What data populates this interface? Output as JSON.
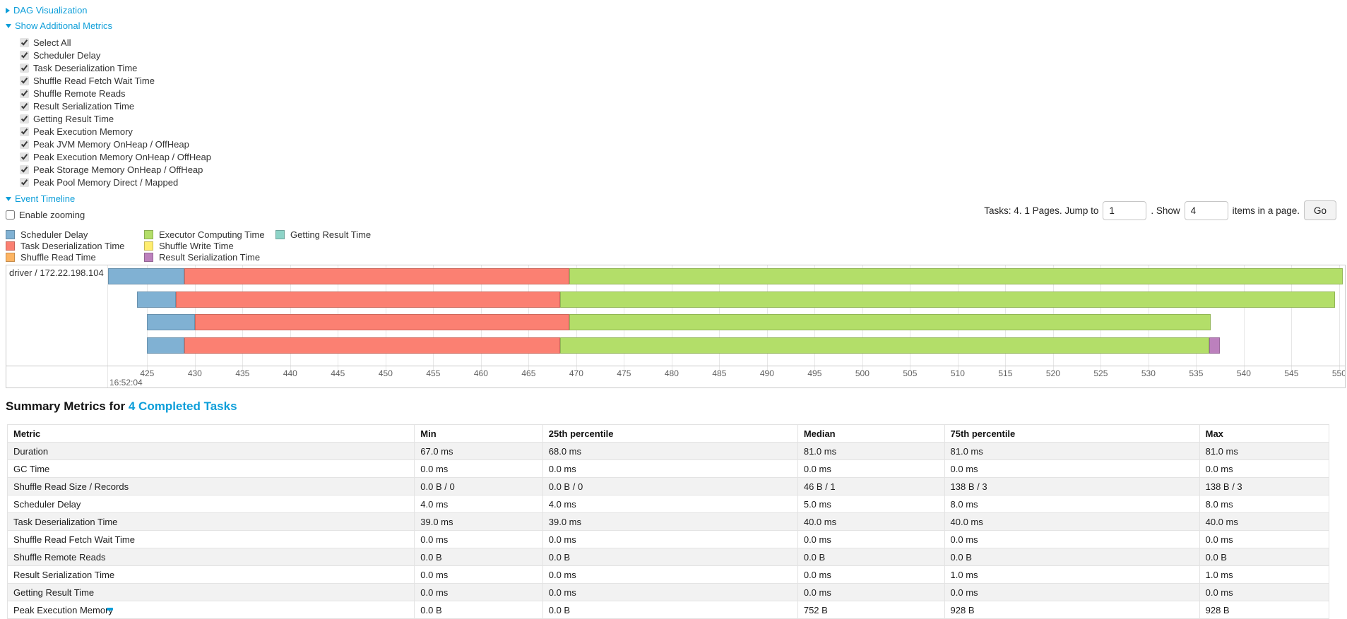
{
  "accent": {
    "link_color": "#0d9ed9"
  },
  "sections": {
    "dag": {
      "label": "DAG Visualization",
      "state": "collapsed"
    },
    "additional_metrics": {
      "label": "Show Additional Metrics",
      "state": "expanded"
    },
    "event_timeline": {
      "label": "Event Timeline",
      "state": "expanded"
    }
  },
  "metric_checkboxes": [
    {
      "label": "Select All",
      "checked": true
    },
    {
      "label": "Scheduler Delay",
      "checked": true
    },
    {
      "label": "Task Deserialization Time",
      "checked": true
    },
    {
      "label": "Shuffle Read Fetch Wait Time",
      "checked": true
    },
    {
      "label": "Shuffle Remote Reads",
      "checked": true
    },
    {
      "label": "Result Serialization Time",
      "checked": true
    },
    {
      "label": "Getting Result Time",
      "checked": true
    },
    {
      "label": "Peak Execution Memory",
      "checked": true
    },
    {
      "label": "Peak JVM Memory OnHeap / OffHeap",
      "checked": true
    },
    {
      "label": "Peak Execution Memory OnHeap / OffHeap",
      "checked": true
    },
    {
      "label": "Peak Storage Memory OnHeap / OffHeap",
      "checked": true
    },
    {
      "label": "Peak Pool Memory Direct / Mapped",
      "checked": true
    }
  ],
  "enable_zooming": {
    "label": "Enable zooming",
    "checked": false
  },
  "legend": {
    "items": [
      {
        "label": "Scheduler Delay",
        "color": "#80B1D3"
      },
      {
        "label": "Task Deserialization Time",
        "color": "#FB8072"
      },
      {
        "label": "Shuffle Read Time",
        "color": "#FDB462"
      },
      {
        "label": "Executor Computing Time",
        "color": "#B3DE69"
      },
      {
        "label": "Shuffle Write Time",
        "color": "#FFED6F"
      },
      {
        "label": "Result Serialization Time",
        "color": "#BC80BD"
      },
      {
        "label": "Getting Result Time",
        "color": "#8DD3C7"
      }
    ]
  },
  "pagination": {
    "summary": "Tasks: 4. 1 Pages. Jump to",
    "jump_value": "1",
    "show_label": ". Show",
    "show_value": "4",
    "suffix": "items in a page.",
    "go": "Go"
  },
  "chart_data": {
    "type": "timeline",
    "group_label": "driver / 172.22.198.104",
    "axis": {
      "min": 420.9,
      "max": 550.6,
      "tick_start": 425,
      "tick_end": 550,
      "tick_step": 5,
      "first_tick_sublabel": "16:52:04",
      "grid": true
    },
    "tasks": [
      {
        "segments": [
          {
            "metric": "Scheduler Delay",
            "start": 420.9,
            "end": 428.9,
            "color": "#80B1D3"
          },
          {
            "metric": "Task Deserialization Time",
            "start": 428.9,
            "end": 469.3,
            "color": "#FB8072"
          },
          {
            "metric": "Executor Computing Time",
            "start": 469.3,
            "end": 550.4,
            "color": "#B3DE69"
          }
        ]
      },
      {
        "segments": [
          {
            "metric": "Scheduler Delay",
            "start": 423.9,
            "end": 428.0,
            "color": "#80B1D3"
          },
          {
            "metric": "Task Deserialization Time",
            "start": 428.0,
            "end": 468.3,
            "color": "#FB8072"
          },
          {
            "metric": "Executor Computing Time",
            "start": 468.3,
            "end": 549.6,
            "color": "#B3DE69"
          }
        ]
      },
      {
        "segments": [
          {
            "metric": "Scheduler Delay",
            "start": 425.0,
            "end": 430.0,
            "color": "#80B1D3"
          },
          {
            "metric": "Task Deserialization Time",
            "start": 430.0,
            "end": 469.3,
            "color": "#FB8072"
          },
          {
            "metric": "Executor Computing Time",
            "start": 469.3,
            "end": 536.5,
            "color": "#B3DE69"
          }
        ]
      },
      {
        "segments": [
          {
            "metric": "Scheduler Delay",
            "start": 425.0,
            "end": 428.9,
            "color": "#80B1D3"
          },
          {
            "metric": "Task Deserialization Time",
            "start": 428.9,
            "end": 468.3,
            "color": "#FB8072"
          },
          {
            "metric": "Executor Computing Time",
            "start": 468.3,
            "end": 536.4,
            "color": "#B3DE69"
          },
          {
            "metric": "Result Serialization Time",
            "start": 536.4,
            "end": 537.5,
            "color": "#BC80BD"
          }
        ]
      }
    ]
  },
  "summary": {
    "title_prefix": "Summary Metrics for",
    "title_link": "4 Completed Tasks",
    "headers": [
      "Metric",
      "Min",
      "25th percentile",
      "Median",
      "75th percentile",
      "Max"
    ],
    "rows": [
      {
        "metric": "Duration",
        "values": [
          "67.0 ms",
          "68.0 ms",
          "81.0 ms",
          "81.0 ms",
          "81.0 ms"
        ]
      },
      {
        "metric": "GC Time",
        "values": [
          "0.0 ms",
          "0.0 ms",
          "0.0 ms",
          "0.0 ms",
          "0.0 ms"
        ]
      },
      {
        "metric": "Shuffle Read Size / Records",
        "values": [
          "0.0 B / 0",
          "0.0 B / 0",
          "46 B / 1",
          "138 B / 3",
          "138 B / 3"
        ]
      },
      {
        "metric": "Scheduler Delay",
        "values": [
          "4.0 ms",
          "4.0 ms",
          "5.0 ms",
          "8.0 ms",
          "8.0 ms"
        ]
      },
      {
        "metric": "Task Deserialization Time",
        "values": [
          "39.0 ms",
          "39.0 ms",
          "40.0 ms",
          "40.0 ms",
          "40.0 ms"
        ]
      },
      {
        "metric": "Shuffle Read Fetch Wait Time",
        "values": [
          "0.0 ms",
          "0.0 ms",
          "0.0 ms",
          "0.0 ms",
          "0.0 ms"
        ]
      },
      {
        "metric": "Shuffle Remote Reads",
        "values": [
          "0.0 B",
          "0.0 B",
          "0.0 B",
          "0.0 B",
          "0.0 B"
        ]
      },
      {
        "metric": "Result Serialization Time",
        "values": [
          "0.0 ms",
          "0.0 ms",
          "0.0 ms",
          "1.0 ms",
          "1.0 ms"
        ]
      },
      {
        "metric": "Getting Result Time",
        "values": [
          "0.0 ms",
          "0.0 ms",
          "0.0 ms",
          "0.0 ms",
          "0.0 ms"
        ]
      },
      {
        "metric": "Peak Execution Memory",
        "values": [
          "0.0 B",
          "0.0 B",
          "752 B",
          "928 B",
          "928 B"
        ]
      }
    ]
  }
}
